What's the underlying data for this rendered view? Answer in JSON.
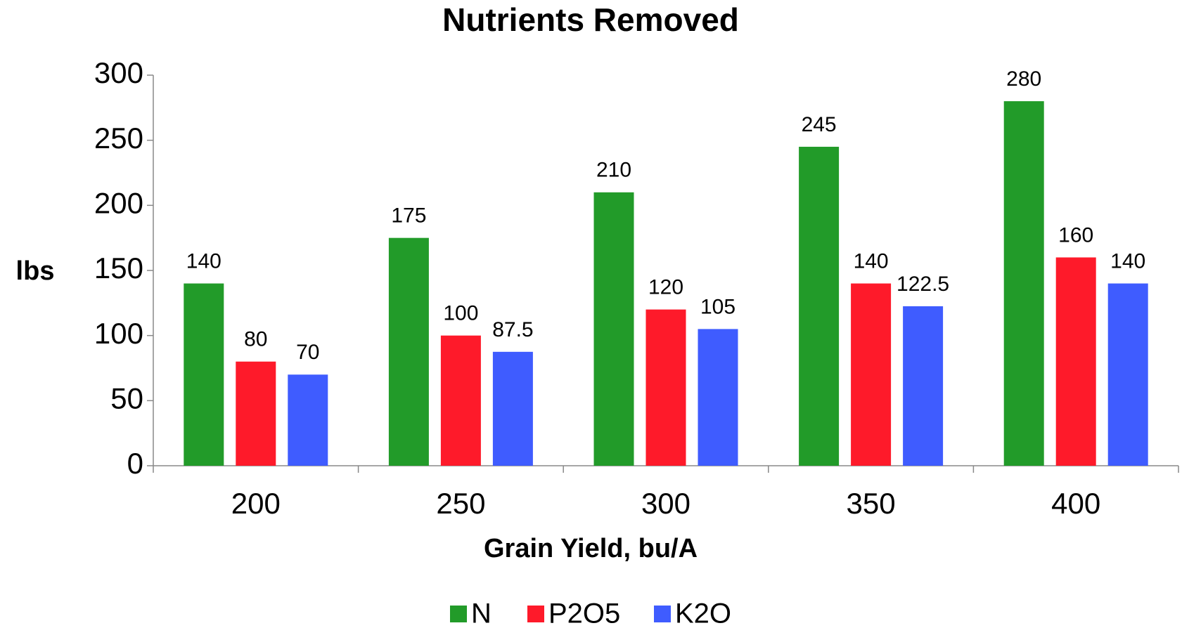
{
  "chart_data": {
    "type": "bar",
    "title": "Nutrients Removed",
    "x_label": "Grain Yield, bu/A",
    "y_label": "lbs",
    "categories": [
      "200",
      "250",
      "300",
      "350",
      "400"
    ],
    "series": [
      {
        "name": "N",
        "color": "#229b29",
        "values": [
          140,
          175,
          210,
          245,
          280
        ]
      },
      {
        "name": "P2O5",
        "color": "#fe1a2a",
        "values": [
          80,
          100,
          120,
          140,
          160
        ]
      },
      {
        "name": "K2O",
        "color": "#3f5cff",
        "values": [
          70,
          87.5,
          105,
          122.5,
          140
        ]
      }
    ],
    "ylim": [
      0,
      300
    ],
    "yticks": [
      0,
      50,
      100,
      150,
      200,
      250,
      300
    ],
    "grid": false,
    "legend": "bottom"
  }
}
